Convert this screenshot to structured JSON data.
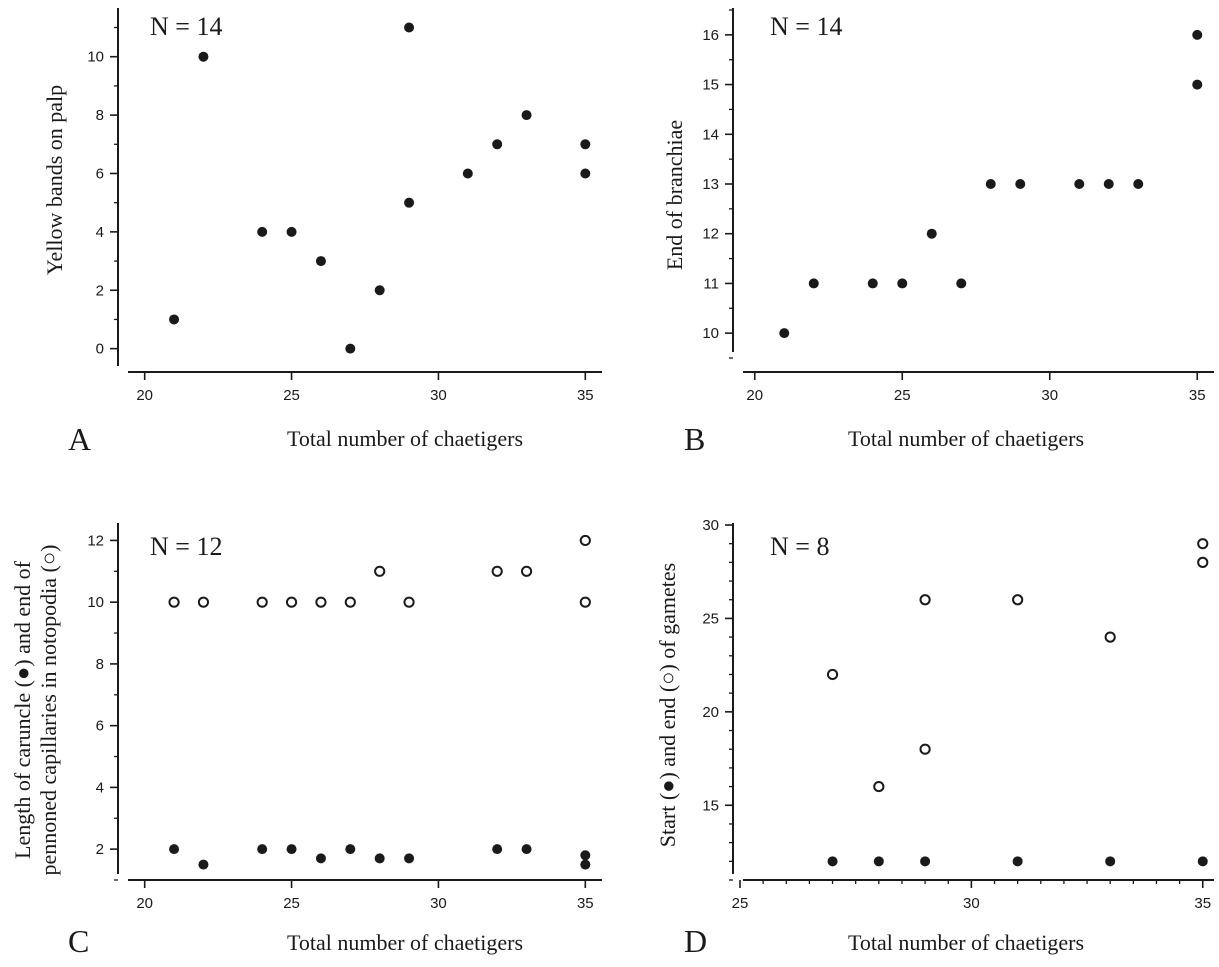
{
  "chart_data": [
    {
      "type": "scatter",
      "panel": "A",
      "annotation": "N = 14",
      "xlabel": "Total number of chaetigers",
      "ylabel": "Yellow bands on palp",
      "xlim": [
        19.5,
        35.5
      ],
      "ylim": [
        -0.8,
        11.6
      ],
      "xticks": [
        20,
        25,
        30,
        35
      ],
      "yticks": [
        0,
        2,
        4,
        6,
        8,
        10
      ],
      "series": [
        {
          "marker": "filled",
          "points": [
            [
              21,
              1
            ],
            [
              22,
              10
            ],
            [
              24,
              4
            ],
            [
              25,
              4
            ],
            [
              26,
              3
            ],
            [
              27,
              0
            ],
            [
              28,
              2
            ],
            [
              29,
              11
            ],
            [
              29,
              5
            ],
            [
              31,
              6
            ],
            [
              32,
              7
            ],
            [
              33,
              8
            ],
            [
              35,
              7
            ],
            [
              35,
              6
            ]
          ]
        }
      ]
    },
    {
      "type": "scatter",
      "panel": "B",
      "annotation": "N = 14",
      "xlabel": "Total number of chaetigers",
      "ylabel": "End of branchiae",
      "xlim": [
        19.5,
        35.5
      ],
      "ylim": [
        9.5,
        16.5
      ],
      "xticks": [
        20,
        25,
        30,
        35
      ],
      "yticks": [
        10,
        11,
        12,
        13,
        14,
        15,
        16
      ],
      "series": [
        {
          "marker": "filled",
          "points": [
            [
              21,
              10
            ],
            [
              22,
              11
            ],
            [
              24,
              11
            ],
            [
              25,
              11
            ],
            [
              26,
              12
            ],
            [
              27,
              11
            ],
            [
              28,
              13
            ],
            [
              29,
              13
            ],
            [
              31,
              13
            ],
            [
              32,
              13
            ],
            [
              33,
              13
            ],
            [
              35,
              15
            ],
            [
              35,
              16
            ]
          ]
        }
      ]
    },
    {
      "type": "scatter",
      "panel": "C",
      "annotation": "N = 12",
      "xlabel": "Total number of chaetigers",
      "ylabel": [
        "Length of caruncle (●) and end of",
        "pennoned capillaries in notopodia (○)"
      ],
      "xlim": [
        19.5,
        35.5
      ],
      "ylim": [
        1,
        12.5
      ],
      "xticks": [
        20,
        25,
        30,
        35
      ],
      "yticks": [
        2,
        4,
        6,
        8,
        10,
        12
      ],
      "series": [
        {
          "marker": "filled",
          "points": [
            [
              21,
              2
            ],
            [
              22,
              1.5
            ],
            [
              24,
              2
            ],
            [
              25,
              2
            ],
            [
              26,
              1.7
            ],
            [
              27,
              2
            ],
            [
              28,
              1.7
            ],
            [
              29,
              1.7
            ],
            [
              32,
              2
            ],
            [
              33,
              2
            ],
            [
              35,
              1.8
            ],
            [
              35,
              1.5
            ]
          ]
        },
        {
          "marker": "open",
          "points": [
            [
              21,
              10
            ],
            [
              22,
              10
            ],
            [
              24,
              10
            ],
            [
              25,
              10
            ],
            [
              26,
              10
            ],
            [
              27,
              10
            ],
            [
              28,
              11
            ],
            [
              29,
              10
            ],
            [
              32,
              11
            ],
            [
              33,
              11
            ],
            [
              35,
              12
            ],
            [
              35,
              10
            ]
          ]
        }
      ]
    },
    {
      "type": "scatter",
      "panel": "D",
      "annotation": "N = 8",
      "xlabel": "Total number of chaetigers",
      "ylabel": "Start (●) and end (○) of gametes",
      "xlim": [
        25,
        35.2
      ],
      "ylim": [
        11,
        30
      ],
      "xticks": [
        25,
        30,
        35
      ],
      "yticks": [
        15,
        20,
        25,
        30
      ],
      "series": [
        {
          "marker": "filled",
          "points": [
            [
              27,
              12
            ],
            [
              28,
              12
            ],
            [
              29,
              12
            ],
            [
              31,
              12
            ],
            [
              33,
              12
            ],
            [
              35,
              12
            ]
          ]
        },
        {
          "marker": "open",
          "points": [
            [
              27,
              22
            ],
            [
              28,
              16
            ],
            [
              29,
              26
            ],
            [
              29,
              18
            ],
            [
              31,
              26
            ],
            [
              33,
              24
            ],
            [
              35,
              29
            ],
            [
              35,
              28
            ]
          ]
        }
      ]
    }
  ]
}
